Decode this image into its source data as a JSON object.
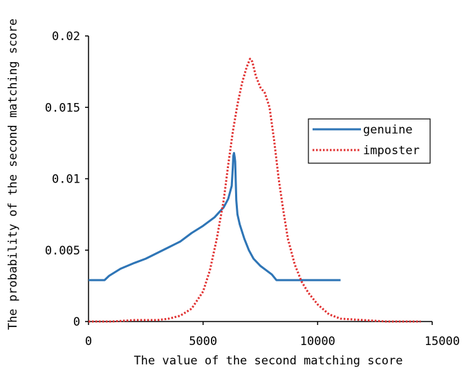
{
  "chart_data": {
    "type": "line",
    "xlabel": "The value of the second matching score",
    "ylabel": "The probability of the second matching score",
    "xlim": [
      0,
      15000
    ],
    "ylim": [
      0,
      0.02
    ],
    "x_ticks": [
      0,
      5000,
      10000,
      15000
    ],
    "x_tick_labels": [
      "0",
      "5000",
      "10000",
      "15000"
    ],
    "y_ticks": [
      0,
      0.005,
      0.01,
      0.015,
      0.02
    ],
    "y_tick_labels": [
      "0",
      "0.005",
      "0.01",
      "0.015",
      "0.02"
    ],
    "grid": false,
    "legend": "right",
    "series": [
      {
        "name": "genuine",
        "color": "#2e75b6",
        "style": "solid",
        "x": [
          0,
          700,
          900,
          1400,
          2000,
          2500,
          3000,
          3500,
          4000,
          4500,
          5000,
          5500,
          5900,
          6100,
          6250,
          6300,
          6320,
          6350,
          6380,
          6400,
          6450,
          6500,
          6600,
          6800,
          7000,
          7200,
          7500,
          8000,
          8200,
          8500,
          9000,
          10000,
          11000
        ],
        "y": [
          0.0029,
          0.0029,
          0.0032,
          0.0037,
          0.0041,
          0.0044,
          0.0048,
          0.0052,
          0.0056,
          0.0062,
          0.0067,
          0.0073,
          0.008,
          0.0086,
          0.0095,
          0.0108,
          0.0116,
          0.0118,
          0.0115,
          0.0112,
          0.0085,
          0.0075,
          0.0068,
          0.0058,
          0.005,
          0.0044,
          0.0039,
          0.0033,
          0.0029,
          0.0029,
          0.0029,
          0.0029,
          0.0029
        ]
      },
      {
        "name": "imposter",
        "color": "#e03030",
        "style": "dotted",
        "x": [
          0,
          1000,
          2000,
          3000,
          3500,
          4000,
          4500,
          5000,
          5300,
          5600,
          5900,
          6100,
          6300,
          6500,
          6700,
          6900,
          7050,
          7150,
          7300,
          7500,
          7700,
          7900,
          8100,
          8300,
          8500,
          8700,
          9000,
          9300,
          9600,
          10000,
          10500,
          11000,
          12000,
          13000,
          14500
        ],
        "y": [
          0.0,
          0.0,
          0.0001,
          0.0001,
          0.0002,
          0.0004,
          0.0009,
          0.0021,
          0.0036,
          0.0058,
          0.0085,
          0.011,
          0.0133,
          0.0152,
          0.0167,
          0.0178,
          0.0184,
          0.0182,
          0.0172,
          0.0164,
          0.016,
          0.015,
          0.0127,
          0.01,
          0.0078,
          0.0058,
          0.004,
          0.0028,
          0.002,
          0.0012,
          0.0005,
          0.0002,
          0.0001,
          0.0,
          0.0
        ]
      }
    ]
  }
}
